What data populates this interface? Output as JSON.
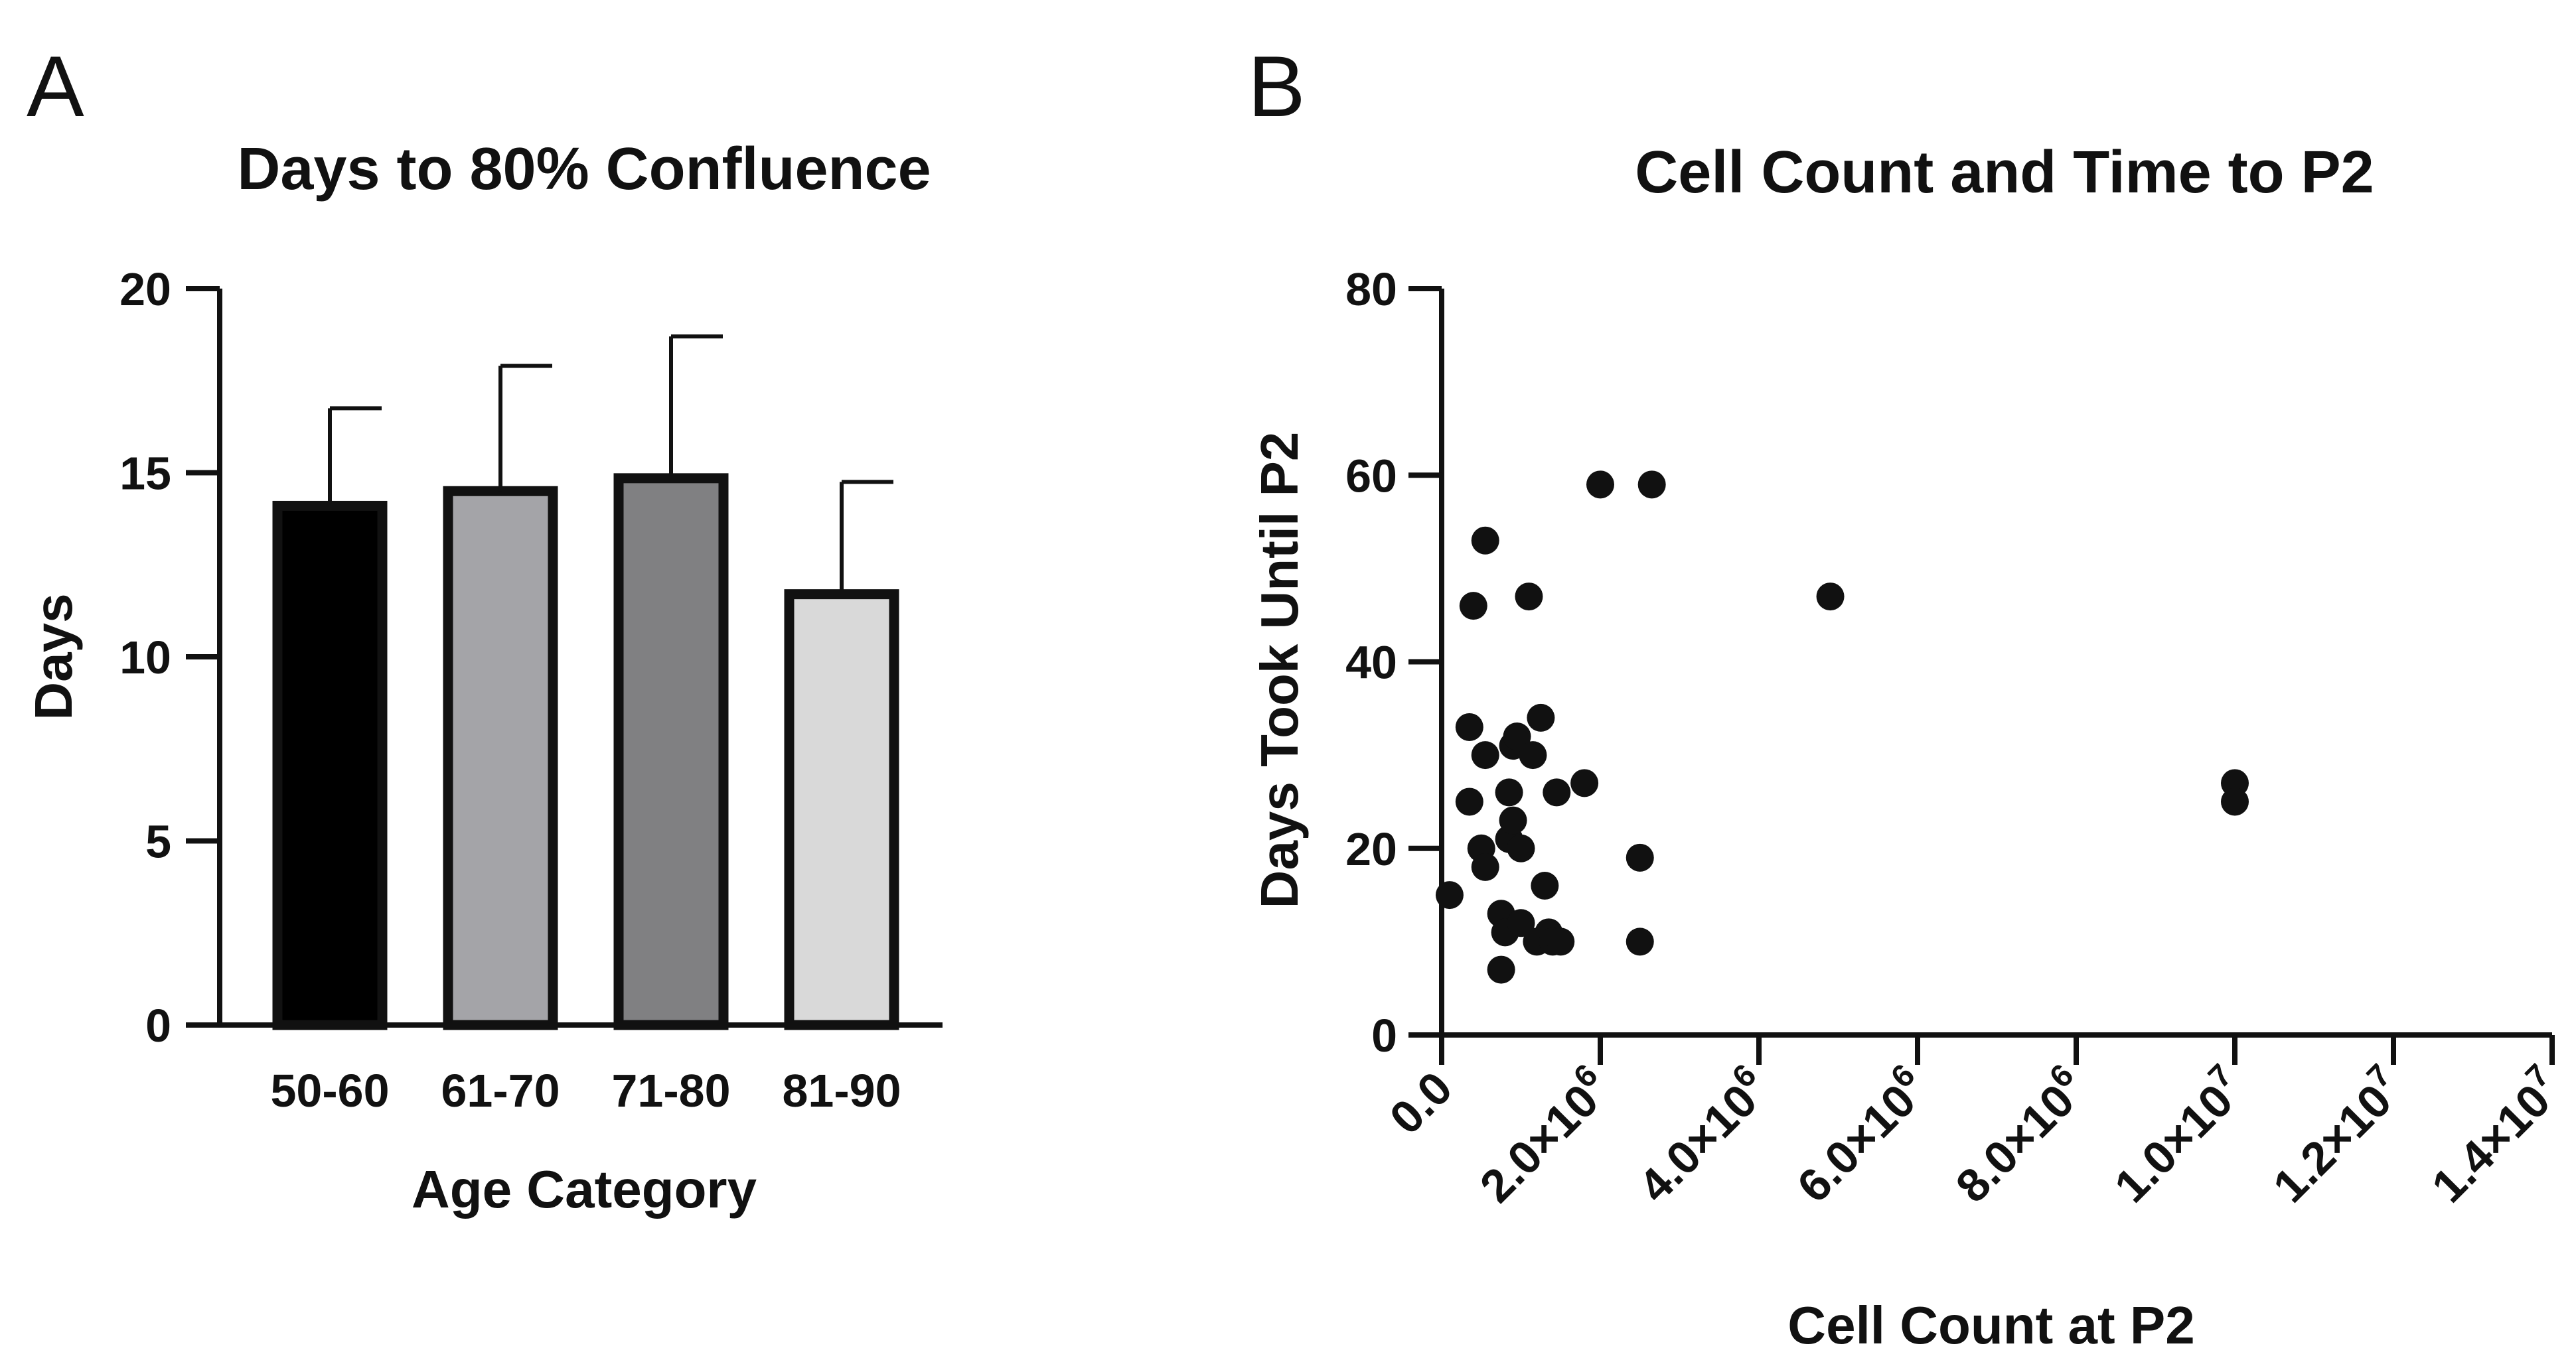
{
  "chart_data": [
    {
      "panel": "A",
      "type": "bar",
      "title": "Days to 80% Confluence",
      "xlabel": "Age Category",
      "ylabel": "Days",
      "ylim": [
        0,
        20
      ],
      "yticks": [
        "0",
        "5",
        "10",
        "15",
        "20"
      ],
      "categories": [
        "50-60",
        "61-70",
        "71-80",
        "81-90"
      ],
      "values": [
        14.1,
        14.5,
        14.85,
        11.7
      ],
      "error_upper": [
        16.75,
        17.9,
        18.7,
        14.75
      ],
      "colors": [
        "#000000",
        "#a4a4a8",
        "#808082",
        "#d9d9d9"
      ]
    },
    {
      "panel": "B",
      "type": "scatter",
      "title": "Cell Count and Time to P2",
      "xlabel": "Cell Count at P2",
      "ylabel": "Days Took Until P2",
      "xlim": [
        0,
        14000000
      ],
      "ylim": [
        0,
        80
      ],
      "yticks": [
        "0",
        "20",
        "40",
        "60",
        "80"
      ],
      "xticks": [
        {
          "value": 0,
          "mantissa": "0.0",
          "exp": ""
        },
        {
          "value": 2000000,
          "mantissa": "2.0×10",
          "exp": "6"
        },
        {
          "value": 4000000,
          "mantissa": "4.0×10",
          "exp": "6"
        },
        {
          "value": 6000000,
          "mantissa": "6.0×10",
          "exp": "6"
        },
        {
          "value": 8000000,
          "mantissa": "8.0×10",
          "exp": "6"
        },
        {
          "value": 10000000,
          "mantissa": "1.0×10",
          "exp": "7"
        },
        {
          "value": 12000000,
          "mantissa": "1.2×10",
          "exp": "7"
        },
        {
          "value": 14000000,
          "mantissa": "1.4×10",
          "exp": "7"
        }
      ],
      "points": [
        [
          100000,
          15
        ],
        [
          350000,
          33
        ],
        [
          350000,
          25
        ],
        [
          400000,
          46
        ],
        [
          500000,
          20
        ],
        [
          550000,
          53
        ],
        [
          550000,
          30
        ],
        [
          550000,
          18
        ],
        [
          750000,
          13
        ],
        [
          750000,
          7
        ],
        [
          800000,
          11
        ],
        [
          850000,
          26
        ],
        [
          850000,
          21
        ],
        [
          900000,
          31
        ],
        [
          900000,
          23
        ],
        [
          950000,
          32
        ],
        [
          1000000,
          20
        ],
        [
          1000000,
          12
        ],
        [
          1100000,
          47
        ],
        [
          1150000,
          30
        ],
        [
          1200000,
          10
        ],
        [
          1250000,
          34
        ],
        [
          1300000,
          16
        ],
        [
          1350000,
          11
        ],
        [
          1400000,
          10
        ],
        [
          1450000,
          26
        ],
        [
          1500000,
          10
        ],
        [
          1800000,
          27
        ],
        [
          2000000,
          59
        ],
        [
          2500000,
          19
        ],
        [
          2500000,
          10
        ],
        [
          2650000,
          59
        ],
        [
          4900000,
          47
        ],
        [
          10000000,
          27
        ],
        [
          10000000,
          25
        ]
      ]
    }
  ]
}
